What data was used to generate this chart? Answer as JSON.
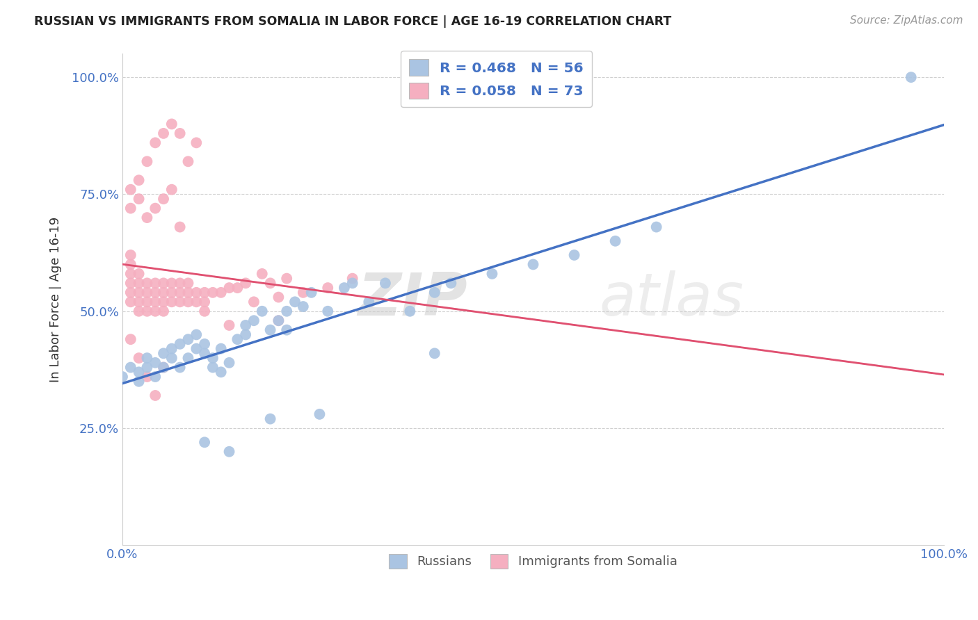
{
  "title": "RUSSIAN VS IMMIGRANTS FROM SOMALIA IN LABOR FORCE | AGE 16-19 CORRELATION CHART",
  "source": "Source: ZipAtlas.com",
  "ylabel": "In Labor Force | Age 16-19",
  "xlim": [
    0.0,
    1.0
  ],
  "ylim": [
    0.0,
    1.05
  ],
  "russian_R": "0.468",
  "russian_N": "56",
  "somalia_R": "0.058",
  "somalia_N": "73",
  "russian_color": "#aac4e2",
  "russian_line_color": "#4472c4",
  "somalia_color": "#f5afc0",
  "somalia_line_color": "#e05070",
  "watermark_zip": "ZIP",
  "watermark_atlas": "atlas",
  "russian_scatter_x": [
    0.0,
    0.01,
    0.02,
    0.02,
    0.03,
    0.03,
    0.04,
    0.04,
    0.05,
    0.05,
    0.06,
    0.06,
    0.07,
    0.07,
    0.08,
    0.08,
    0.09,
    0.09,
    0.1,
    0.1,
    0.11,
    0.11,
    0.12,
    0.12,
    0.13,
    0.14,
    0.15,
    0.15,
    0.16,
    0.17,
    0.18,
    0.19,
    0.2,
    0.2,
    0.21,
    0.22,
    0.23,
    0.25,
    0.27,
    0.28,
    0.3,
    0.32,
    0.35,
    0.38,
    0.4,
    0.45,
    0.5,
    0.55,
    0.6,
    0.65,
    0.1,
    0.13,
    0.18,
    0.24,
    0.38,
    0.96
  ],
  "russian_scatter_y": [
    0.36,
    0.38,
    0.35,
    0.37,
    0.38,
    0.4,
    0.36,
    0.39,
    0.38,
    0.41,
    0.4,
    0.42,
    0.38,
    0.43,
    0.4,
    0.44,
    0.42,
    0.45,
    0.41,
    0.43,
    0.38,
    0.4,
    0.37,
    0.42,
    0.39,
    0.44,
    0.45,
    0.47,
    0.48,
    0.5,
    0.46,
    0.48,
    0.46,
    0.5,
    0.52,
    0.51,
    0.54,
    0.5,
    0.55,
    0.56,
    0.52,
    0.56,
    0.5,
    0.54,
    0.56,
    0.58,
    0.6,
    0.62,
    0.65,
    0.68,
    0.22,
    0.2,
    0.27,
    0.28,
    0.41,
    1.0
  ],
  "somalia_scatter_x": [
    0.01,
    0.01,
    0.01,
    0.01,
    0.01,
    0.01,
    0.02,
    0.02,
    0.02,
    0.02,
    0.02,
    0.03,
    0.03,
    0.03,
    0.03,
    0.04,
    0.04,
    0.04,
    0.04,
    0.05,
    0.05,
    0.05,
    0.05,
    0.06,
    0.06,
    0.06,
    0.07,
    0.07,
    0.07,
    0.08,
    0.08,
    0.08,
    0.09,
    0.09,
    0.1,
    0.1,
    0.1,
    0.11,
    0.12,
    0.13,
    0.14,
    0.15,
    0.16,
    0.17,
    0.18,
    0.19,
    0.2,
    0.22,
    0.25,
    0.28,
    0.01,
    0.02,
    0.03,
    0.04,
    0.05,
    0.06,
    0.07,
    0.08,
    0.09,
    0.01,
    0.02,
    0.03,
    0.04,
    0.05,
    0.06,
    0.07,
    0.01,
    0.02,
    0.03,
    0.04,
    0.05,
    0.13,
    0.19
  ],
  "somalia_scatter_y": [
    0.52,
    0.54,
    0.56,
    0.58,
    0.6,
    0.62,
    0.52,
    0.54,
    0.56,
    0.58,
    0.5,
    0.52,
    0.54,
    0.56,
    0.5,
    0.52,
    0.54,
    0.56,
    0.5,
    0.52,
    0.54,
    0.56,
    0.5,
    0.52,
    0.54,
    0.56,
    0.52,
    0.54,
    0.56,
    0.52,
    0.54,
    0.56,
    0.52,
    0.54,
    0.52,
    0.54,
    0.5,
    0.54,
    0.54,
    0.55,
    0.55,
    0.56,
    0.52,
    0.58,
    0.56,
    0.53,
    0.57,
    0.54,
    0.55,
    0.57,
    0.76,
    0.78,
    0.82,
    0.86,
    0.88,
    0.9,
    0.88,
    0.82,
    0.86,
    0.72,
    0.74,
    0.7,
    0.72,
    0.74,
    0.76,
    0.68,
    0.44,
    0.4,
    0.36,
    0.32,
    0.38,
    0.47,
    0.48
  ]
}
